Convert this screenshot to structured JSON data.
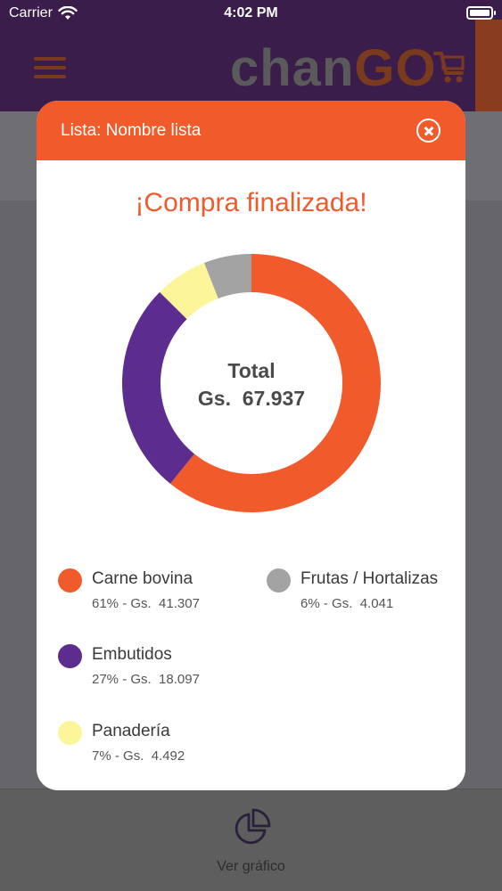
{
  "status_bar": {
    "carrier": "Carrier",
    "time": "4:02 PM"
  },
  "app": {
    "brand_part1": "chan",
    "brand_part2": "GO",
    "bottom_tab_label": "Ver gráfico",
    "bottom_tab_icon": "pie-chart-icon"
  },
  "modal": {
    "title": "Lista: Nombre lista",
    "heading": "¡Compra finalizada!",
    "total_label": "Total",
    "total_value": "Gs.  67.937"
  },
  "chart_data": {
    "type": "pie",
    "variant": "donut",
    "categories": [
      "Carne bovina",
      "Embutidos",
      "Panadería",
      "Frutas / Hortalizas"
    ],
    "values": [
      41307,
      18097,
      4492,
      4041
    ],
    "percent_labels": [
      "61%",
      "27%",
      "7%",
      "6%"
    ],
    "value_labels": [
      "Gs.  41.307",
      "Gs.  18.097",
      "Gs.  4.492",
      "Gs.  4.041"
    ],
    "colors": [
      "#f15a2b",
      "#5c2c8f",
      "#fdf59a",
      "#a3a3a3"
    ],
    "center_text": [
      "Total",
      "Gs.  67.937"
    ],
    "legend_placement": "bottom"
  },
  "colors": {
    "accent": "#f15a2b",
    "header_bg": "#3a1d4a",
    "overlay": "#6b6b6f"
  }
}
